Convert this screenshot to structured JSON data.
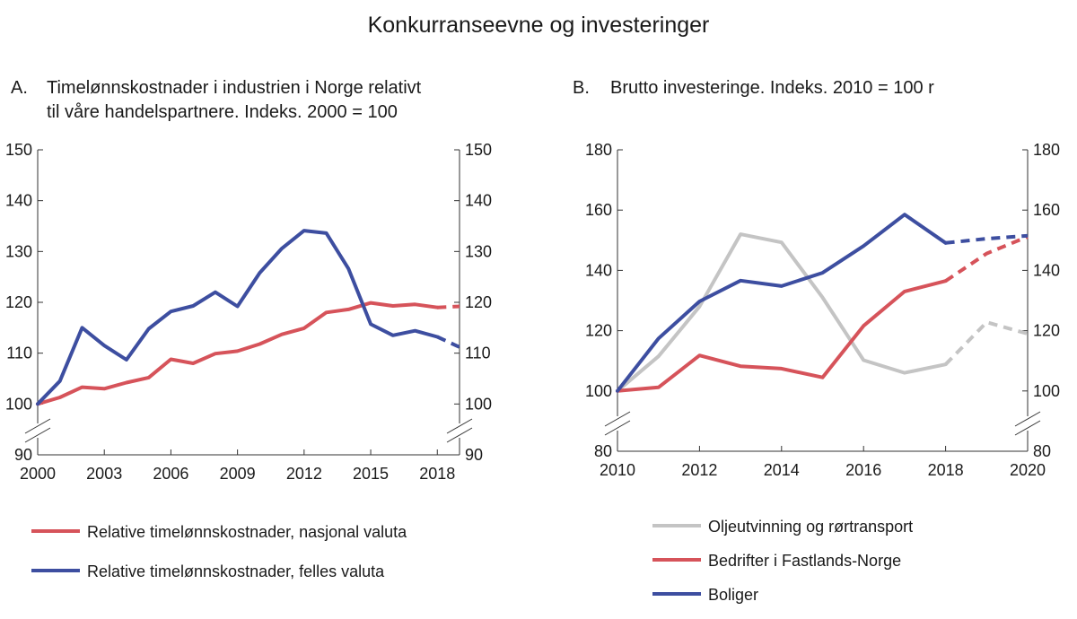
{
  "figure": {
    "title": "Konkurranseevne og investeringer"
  },
  "colors": {
    "red": "#d6535a",
    "blue": "#3d4ea0",
    "gray": "#c4c4c4",
    "axis": "#333333"
  },
  "chart_data": [
    {
      "type": "line",
      "panel_label": "A.",
      "title_lines": [
        "Timelønnskostnader i industrien i Norge relativt",
        "til våre handelspartnere. Indeks. 2000 = 100"
      ],
      "ylim": [
        90,
        150
      ],
      "yticks": [
        90,
        100,
        110,
        120,
        130,
        140,
        150
      ],
      "xlim": [
        2000,
        2019
      ],
      "xticks": [
        2000,
        2003,
        2006,
        2009,
        2012,
        2015,
        2018
      ],
      "axis_break": true,
      "grid": false,
      "legend_position": "bottom",
      "series": [
        {
          "name": "Relative timelønnskostnader, nasjonal valuta",
          "color": "#d6535a",
          "x": [
            2000,
            2001,
            2002,
            2003,
            2004,
            2005,
            2006,
            2007,
            2008,
            2009,
            2010,
            2011,
            2012,
            2013,
            2014,
            2015,
            2016,
            2017,
            2018,
            2019
          ],
          "values": [
            100,
            101.3,
            103.3,
            103.0,
            104.2,
            105.2,
            108.8,
            108.0,
            109.9,
            110.4,
            111.8,
            113.7,
            114.9,
            118.0,
            118.6,
            119.9,
            119.3,
            119.6,
            119.0,
            119.2
          ],
          "dashed_from_index": 18
        },
        {
          "name": "Relative timelønnskostnader, felles valuta",
          "color": "#3d4ea0",
          "x": [
            2000,
            2001,
            2002,
            2003,
            2004,
            2005,
            2006,
            2007,
            2008,
            2009,
            2010,
            2011,
            2012,
            2013,
            2014,
            2015,
            2016,
            2017,
            2018,
            2019
          ],
          "values": [
            100,
            104.5,
            115.0,
            111.5,
            108.7,
            114.8,
            118.2,
            119.3,
            122.0,
            119.2,
            125.8,
            130.6,
            134.1,
            133.6,
            126.6,
            115.7,
            113.5,
            114.4,
            113.2,
            111.2
          ],
          "dashed_from_index": 18
        }
      ]
    },
    {
      "type": "line",
      "panel_label": "B.",
      "title_lines": [
        "Brutto  investeringe. Indeks. 2010 = 100 r"
      ],
      "ylim": [
        80,
        180
      ],
      "yticks": [
        80,
        100,
        120,
        140,
        160,
        180
      ],
      "xlim": [
        2010,
        2020
      ],
      "xticks": [
        2010,
        2012,
        2014,
        2016,
        2018,
        2020
      ],
      "axis_break": true,
      "grid": false,
      "legend_position": "bottom",
      "series": [
        {
          "name": "Oljeutvinning og rørtransport",
          "color": "#c4c4c4",
          "x": [
            2010,
            2011,
            2012,
            2013,
            2014,
            2015,
            2016,
            2017,
            2018,
            2019,
            2020
          ],
          "values": [
            100,
            111.5,
            128.0,
            152.0,
            149.3,
            131.0,
            110.2,
            106.0,
            108.8,
            122.8,
            119.0
          ],
          "dashed_from_index": 8
        },
        {
          "name": "Bedrifter i Fastlands-Norge",
          "color": "#d6535a",
          "x": [
            2010,
            2011,
            2012,
            2013,
            2014,
            2015,
            2016,
            2017,
            2018,
            2019,
            2020
          ],
          "values": [
            100,
            101.2,
            111.8,
            108.2,
            107.4,
            104.5,
            121.6,
            133.0,
            136.5,
            145.6,
            151.2
          ],
          "dashed_from_index": 8
        },
        {
          "name": "Boliger",
          "color": "#3d4ea0",
          "x": [
            2010,
            2011,
            2012,
            2013,
            2014,
            2015,
            2016,
            2017,
            2018,
            2019,
            2020
          ],
          "values": [
            100,
            117.4,
            129.7,
            136.6,
            134.8,
            139.2,
            148.1,
            158.5,
            149.1,
            150.5,
            151.5
          ],
          "dashed_from_index": 8
        }
      ]
    }
  ]
}
